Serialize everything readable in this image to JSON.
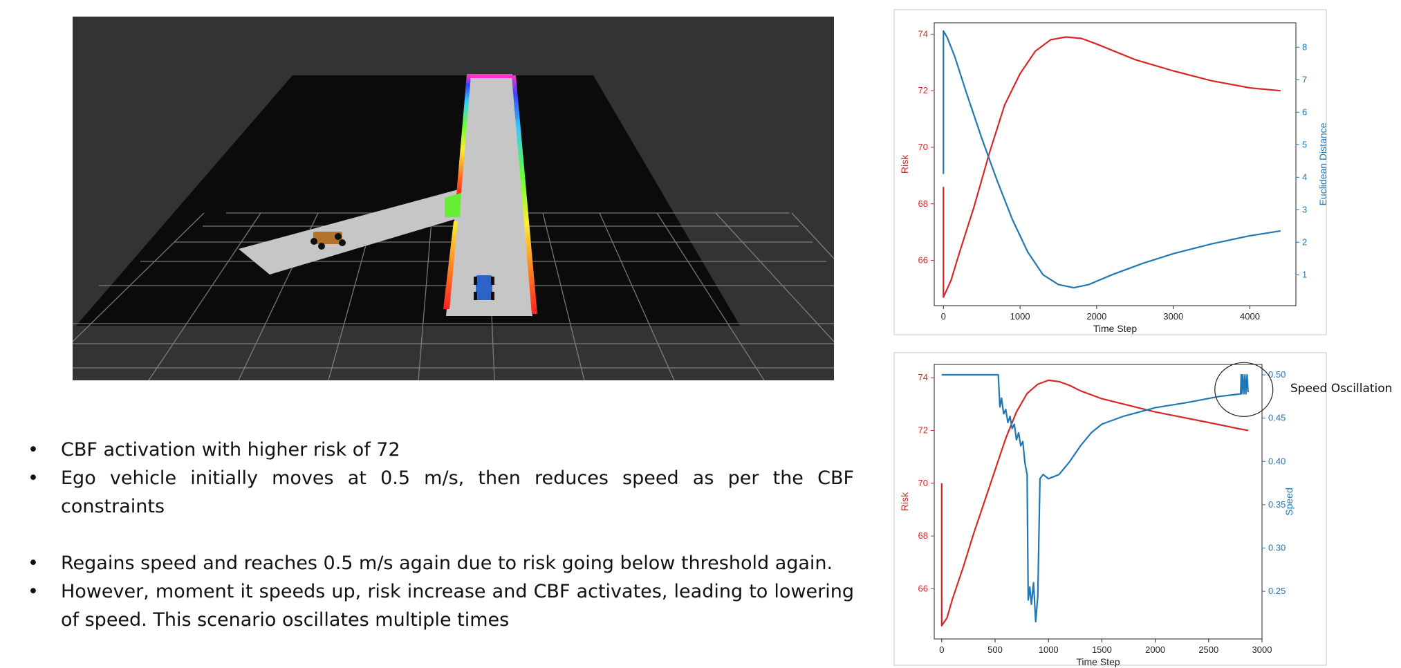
{
  "bullets": [
    "CBF activation with higher risk of 72",
    "Ego vehicle initially moves at 0.5 m/s, then reduces speed as per the CBF constraints",
    "Regains speed and reaches 0.5 m/s again due to risk going below threshold again.",
    "However, moment it speeds up, risk increase and CBF activates, leading to lowering of speed. This scenario oscillates multiple times"
  ],
  "annotation": "Speed Oscillation",
  "colors": {
    "risk": "#d62728",
    "secondary": "#1f77b4"
  },
  "chart_data": [
    {
      "type": "line",
      "xlabel": "Time Step",
      "ylabel": "Risk",
      "ylabel_right": "Euclidean Distance",
      "xlim": [
        -120,
        4600
      ],
      "ylim": [
        64.4,
        74.4
      ],
      "ylim_right": [
        0.05,
        8.75
      ],
      "x_ticks": [
        0,
        1000,
        2000,
        3000,
        4000
      ],
      "y_ticks": [
        66,
        68,
        70,
        72,
        74
      ],
      "y_ticks_right": [
        1,
        2,
        3,
        4,
        5,
        6,
        7,
        8
      ],
      "series": [
        {
          "axis": "left",
          "points": [
            [
              0,
              68.6
            ],
            [
              0,
              64.7
            ],
            [
              100,
              65.3
            ],
            [
              200,
              66.2
            ],
            [
              400,
              67.9
            ],
            [
              600,
              69.8
            ],
            [
              800,
              71.5
            ],
            [
              1000,
              72.6
            ],
            [
              1200,
              73.4
            ],
            [
              1400,
              73.8
            ],
            [
              1600,
              73.9
            ],
            [
              1800,
              73.85
            ],
            [
              2000,
              73.65
            ],
            [
              2500,
              73.1
            ],
            [
              3000,
              72.7
            ],
            [
              3500,
              72.35
            ],
            [
              4000,
              72.1
            ],
            [
              4400,
              72.0
            ]
          ]
        },
        {
          "axis": "right",
          "points": [
            [
              0,
              4.1
            ],
            [
              0,
              8.5
            ],
            [
              50,
              8.3
            ],
            [
              150,
              7.7
            ],
            [
              300,
              6.6
            ],
            [
              500,
              5.2
            ],
            [
              700,
              3.9
            ],
            [
              900,
              2.7
            ],
            [
              1100,
              1.7
            ],
            [
              1300,
              1.0
            ],
            [
              1500,
              0.7
            ],
            [
              1700,
              0.6
            ],
            [
              1900,
              0.7
            ],
            [
              2200,
              1.0
            ],
            [
              2600,
              1.35
            ],
            [
              3000,
              1.65
            ],
            [
              3500,
              1.95
            ],
            [
              4000,
              2.2
            ],
            [
              4400,
              2.35
            ]
          ]
        }
      ]
    },
    {
      "type": "line",
      "xlabel": "Time Step",
      "ylabel": "Risk",
      "ylabel_right": "Speed",
      "xlim": [
        -70,
        3000
      ],
      "ylim": [
        64.1,
        74.5
      ],
      "ylim_right": [
        0.195,
        0.512
      ],
      "x_ticks": [
        0,
        500,
        1000,
        1500,
        2000,
        2500,
        3000
      ],
      "y_ticks": [
        66,
        68,
        70,
        72,
        74
      ],
      "y_ticks_right": [
        0.25,
        0.3,
        0.35,
        0.4,
        0.45,
        0.5
      ],
      "series": [
        {
          "axis": "left",
          "points": [
            [
              0,
              70.0
            ],
            [
              0,
              64.6
            ],
            [
              50,
              64.9
            ],
            [
              100,
              65.6
            ],
            [
              200,
              66.8
            ],
            [
              300,
              68.1
            ],
            [
              400,
              69.3
            ],
            [
              500,
              70.5
            ],
            [
              600,
              71.7
            ],
            [
              700,
              72.7
            ],
            [
              800,
              73.4
            ],
            [
              900,
              73.75
            ],
            [
              1000,
              73.9
            ],
            [
              1100,
              73.85
            ],
            [
              1200,
              73.7
            ],
            [
              1300,
              73.5
            ],
            [
              1500,
              73.2
            ],
            [
              2000,
              72.7
            ],
            [
              2500,
              72.3
            ],
            [
              2800,
              72.05
            ],
            [
              2870,
              72.0
            ]
          ]
        },
        {
          "axis": "right",
          "points": [
            [
              0,
              0.5
            ],
            [
              530,
              0.5
            ],
            [
              545,
              0.463
            ],
            [
              560,
              0.473
            ],
            [
              580,
              0.455
            ],
            [
              600,
              0.46
            ],
            [
              620,
              0.445
            ],
            [
              640,
              0.452
            ],
            [
              660,
              0.438
            ],
            [
              680,
              0.443
            ],
            [
              700,
              0.425
            ],
            [
              720,
              0.433
            ],
            [
              740,
              0.418
            ],
            [
              760,
              0.423
            ],
            [
              780,
              0.398
            ],
            [
              800,
              0.385
            ],
            [
              810,
              0.24
            ],
            [
              825,
              0.255
            ],
            [
              840,
              0.235
            ],
            [
              860,
              0.26
            ],
            [
              880,
              0.215
            ],
            [
              900,
              0.245
            ],
            [
              920,
              0.38
            ],
            [
              950,
              0.385
            ],
            [
              1000,
              0.38
            ],
            [
              1100,
              0.385
            ],
            [
              1200,
              0.4
            ],
            [
              1300,
              0.418
            ],
            [
              1400,
              0.433
            ],
            [
              1500,
              0.443
            ],
            [
              1700,
              0.452
            ],
            [
              2000,
              0.462
            ],
            [
              2300,
              0.468
            ],
            [
              2600,
              0.475
            ],
            [
              2800,
              0.478
            ],
            [
              2805,
              0.5
            ],
            [
              2810,
              0.478
            ],
            [
              2820,
              0.5
            ],
            [
              2830,
              0.478
            ],
            [
              2840,
              0.5
            ],
            [
              2850,
              0.478
            ],
            [
              2860,
              0.5
            ],
            [
              2870,
              0.48
            ]
          ]
        }
      ]
    }
  ]
}
